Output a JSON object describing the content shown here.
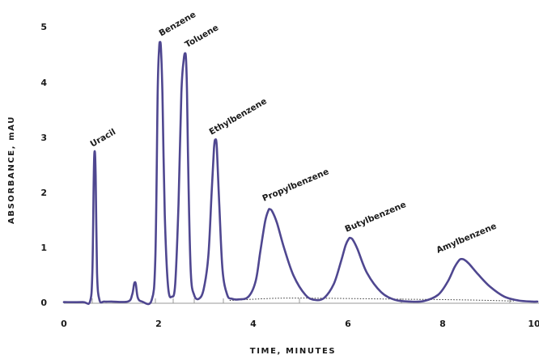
{
  "chart_data": {
    "type": "line",
    "xlabel": "TIME, MINUTES",
    "ylabel": "ABSORBANCE, mAU",
    "xlim": [
      0,
      10
    ],
    "ylim": [
      0,
      5
    ],
    "x_ticks": [
      "0",
      "2",
      "4",
      "6",
      "8",
      "10"
    ],
    "y_ticks": [
      "0",
      "1",
      "2",
      "3",
      "4",
      "5"
    ],
    "grid": false,
    "colors": {
      "trace": "#4f4790",
      "baseline": "#333333",
      "axis": "#999999"
    },
    "peaks": [
      {
        "name": "Uracil",
        "x": 0.65,
        "y": 2.75
      },
      {
        "name": "",
        "x": 1.5,
        "y": 0.38
      },
      {
        "name": "Benzene",
        "x": 2.03,
        "y": 4.72
      },
      {
        "name": "Toluene",
        "x": 2.58,
        "y": 4.52
      },
      {
        "name": "Ethylbenzene",
        "x": 3.2,
        "y": 2.96
      },
      {
        "name": "Propylbenzene",
        "x": 4.35,
        "y": 1.7
      },
      {
        "name": "Butylbenzene",
        "x": 6.05,
        "y": 1.18
      },
      {
        "name": "Amylbenzene",
        "x": 8.4,
        "y": 0.8
      }
    ],
    "series": [
      {
        "style": "solid",
        "x": [
          0.0,
          0.4,
          0.55,
          0.6,
          0.63,
          0.65,
          0.67,
          0.7,
          0.75,
          0.85,
          1.0,
          1.35,
          1.44,
          1.48,
          1.5,
          1.52,
          1.56,
          1.65,
          1.85,
          1.93,
          1.98,
          2.01,
          2.03,
          2.05,
          2.08,
          2.13,
          2.2,
          2.28,
          2.35,
          2.42,
          2.48,
          2.53,
          2.56,
          2.58,
          2.6,
          2.63,
          2.68,
          2.75,
          2.85,
          2.95,
          3.05,
          3.12,
          3.17,
          3.2,
          3.23,
          3.28,
          3.35,
          3.45,
          3.55,
          3.7,
          3.9,
          4.05,
          4.15,
          4.25,
          4.32,
          4.35,
          4.4,
          4.5,
          4.65,
          4.85,
          5.1,
          5.3,
          5.5,
          5.7,
          5.85,
          5.95,
          6.02,
          6.05,
          6.1,
          6.2,
          6.4,
          6.7,
          7.0,
          7.3,
          7.6,
          7.9,
          8.1,
          8.25,
          8.35,
          8.4,
          8.45,
          8.55,
          8.75,
          9.0,
          9.3,
          9.6,
          9.9,
          10.0
        ],
        "y": [
          0.02,
          0.02,
          0.03,
          0.55,
          2.3,
          2.75,
          2.3,
          0.55,
          0.06,
          0.03,
          0.03,
          0.03,
          0.15,
          0.34,
          0.38,
          0.34,
          0.1,
          0.03,
          0.05,
          0.8,
          3.8,
          4.6,
          4.72,
          4.6,
          3.8,
          1.6,
          0.3,
          0.12,
          0.35,
          1.8,
          3.8,
          4.4,
          4.52,
          4.4,
          3.8,
          2.2,
          0.55,
          0.15,
          0.08,
          0.25,
          0.85,
          2.0,
          2.8,
          2.96,
          2.8,
          1.8,
          0.6,
          0.15,
          0.08,
          0.07,
          0.12,
          0.4,
          0.95,
          1.48,
          1.68,
          1.7,
          1.66,
          1.45,
          1.0,
          0.5,
          0.15,
          0.06,
          0.1,
          0.35,
          0.75,
          1.05,
          1.17,
          1.18,
          1.15,
          0.98,
          0.55,
          0.2,
          0.06,
          0.03,
          0.04,
          0.15,
          0.38,
          0.65,
          0.78,
          0.8,
          0.79,
          0.72,
          0.52,
          0.3,
          0.12,
          0.05,
          0.03,
          0.03
        ]
      },
      {
        "style": "dotted",
        "x": [
          3.5,
          4.5,
          5.5,
          6.5,
          7.5,
          8.5,
          9.5
        ],
        "y": [
          0.05,
          0.09,
          0.09,
          0.08,
          0.07,
          0.06,
          0.04
        ]
      }
    ]
  }
}
